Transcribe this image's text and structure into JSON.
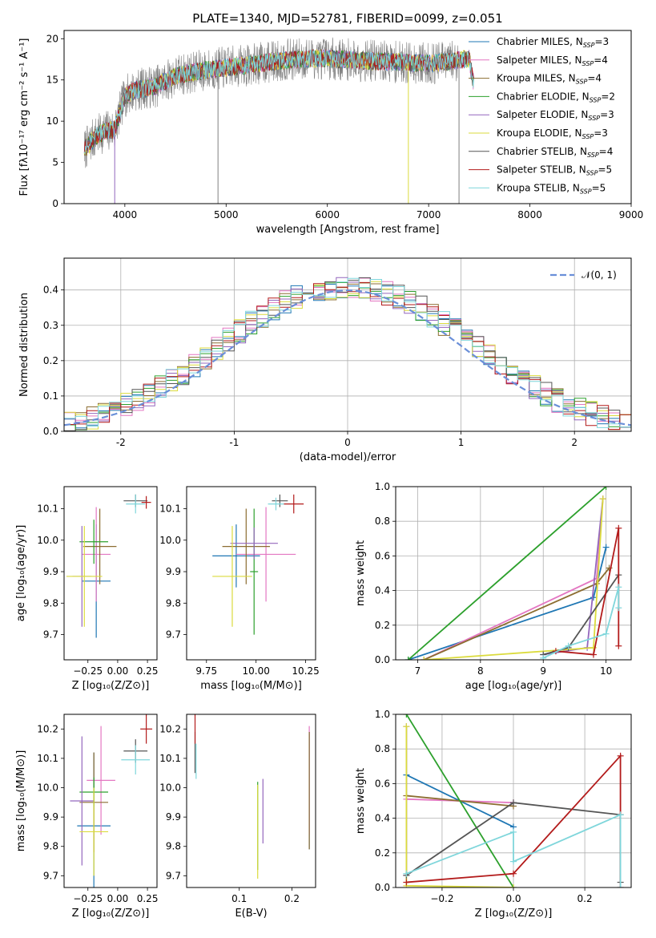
{
  "figure": {
    "title": "PLATE=1340, MJD=52781, FIBERID=0099, z=0.051"
  },
  "colors": {
    "Chabrier MILES": "#1f77b4",
    "Salpeter MILES": "#e377c2",
    "Kroupa MILES": "#8c6d31",
    "Chabrier ELODIE": "#2ca02c",
    "Salpeter ELODIE": "#9467bd",
    "Kroupa ELODIE": "#dbdb3d",
    "Chabrier STELIB": "#555555",
    "Salpeter STELIB": "#b31b1b",
    "Kroupa STELIB": "#7fd6db",
    "data": "#808080",
    "norm": "#6a8fd8"
  },
  "chart_data": [
    {
      "id": "spectrum",
      "type": "line",
      "xlabel": "wavelength [Angstrom, rest frame]",
      "ylabel": "Flux [fλ10⁻¹⁷ erg cm⁻² s⁻¹ A⁻¹]",
      "xlim": [
        3400,
        9000
      ],
      "ylim": [
        0,
        21
      ],
      "xticks": [
        "4000",
        "5000",
        "6000",
        "7000",
        "8000",
        "9000"
      ],
      "yticks": [
        "0",
        "5",
        "10",
        "15",
        "20"
      ],
      "legend_position": "upper-right",
      "legend": [
        {
          "name": "Chabrier MILES",
          "base": "Chabrier MILES, N",
          "sub": "SSP",
          "tail": "=3"
        },
        {
          "name": "Salpeter MILES",
          "base": "Salpeter MILES, N",
          "sub": "SSP",
          "tail": "=4"
        },
        {
          "name": "Kroupa MILES",
          "base": "Kroupa MILES, N",
          "sub": "SSP",
          "tail": "=4"
        },
        {
          "name": "Chabrier ELODIE",
          "base": "Chabrier ELODIE, N",
          "sub": "SSP",
          "tail": "=2"
        },
        {
          "name": "Salpeter ELODIE",
          "base": "Salpeter ELODIE, N",
          "sub": "SSP",
          "tail": "=3"
        },
        {
          "name": "Kroupa ELODIE",
          "base": "Kroupa ELODIE, N",
          "sub": "SSP",
          "tail": "=3"
        },
        {
          "name": "Chabrier STELIB",
          "base": "Chabrier STELIB, N",
          "sub": "SSP",
          "tail": "=4"
        },
        {
          "name": "Salpeter STELIB",
          "base": "Salpeter STELIB, N",
          "sub": "SSP",
          "tail": "=5"
        },
        {
          "name": "Kroupa STELIB",
          "base": "Kroupa STELIB, N",
          "sub": "SSP",
          "tail": "=5"
        }
      ],
      "continuum": [
        [
          3600,
          6.5
        ],
        [
          3700,
          8.0
        ],
        [
          3800,
          8.8
        ],
        [
          3900,
          9.0
        ],
        [
          4000,
          13.0
        ],
        [
          4100,
          13.8
        ],
        [
          4300,
          14.2
        ],
        [
          4500,
          15.5
        ],
        [
          4700,
          16.0
        ],
        [
          5000,
          16.5
        ],
        [
          5200,
          16.8
        ],
        [
          5500,
          17.3
        ],
        [
          5800,
          17.6
        ],
        [
          6000,
          17.6
        ],
        [
          6300,
          17.4
        ],
        [
          6600,
          17.2
        ],
        [
          7000,
          17.0
        ],
        [
          7200,
          17.2
        ],
        [
          7400,
          17.6
        ],
        [
          7450,
          14
        ],
        [
          7470,
          0
        ]
      ],
      "data_range": [
        3600,
        7300
      ],
      "models_range": [
        3600,
        7450
      ],
      "dips": [
        {
          "x": 3900,
          "to": 0,
          "series": "Salpeter ELODIE"
        },
        {
          "x": 4920,
          "to": 0,
          "series": "data"
        },
        {
          "x": 6800,
          "to": 0,
          "series": "Kroupa ELODIE"
        },
        {
          "x": 7300,
          "to": 0,
          "series": "data"
        }
      ]
    },
    {
      "id": "residuals",
      "type": "histogram",
      "xlabel": "(data-model)/error",
      "ylabel": "Normed distribution",
      "xlim": [
        -2.5,
        2.5
      ],
      "ylim": [
        0,
        0.49
      ],
      "xticks": [
        -2,
        -1,
        0,
        1,
        2
      ],
      "yticks": [
        0.0,
        0.1,
        0.2,
        0.3,
        0.4
      ],
      "grid": true,
      "bin_width": 0.1,
      "legend_position": "upper-right",
      "legend": [
        {
          "name": "N(0,1)",
          "label": "𝒩(0, 1)",
          "style": "dashed"
        }
      ],
      "curve": {
        "name": "N(0,1)",
        "type": "normal",
        "mean": 0,
        "std": 1
      }
    },
    {
      "id": "z-age",
      "type": "scatter",
      "xlabel": "Z [log₁₀(Z/Z⊙)]",
      "ylabel": "age  [log₁₀(age/yr)]",
      "xlim": [
        -0.45,
        0.33
      ],
      "ylim": [
        9.62,
        10.17
      ],
      "xticks": [
        -0.25,
        0.0,
        0.25
      ],
      "xtick_labels": [
        "−0.25",
        "0.00",
        "0.25"
      ],
      "yticks": [
        9.7,
        9.8,
        9.9,
        10.0,
        10.1
      ],
      "points": [
        {
          "series": "Chabrier MILES",
          "x": -0.18,
          "xerr": 0.12,
          "y": 9.87,
          "yerr": 0.18
        },
        {
          "series": "Salpeter MILES",
          "x": -0.18,
          "xerr": 0.12,
          "y": 9.955,
          "yerr": 0.15
        },
        {
          "series": "Kroupa MILES",
          "x": -0.15,
          "xerr": 0.14,
          "y": 9.98,
          "yerr": 0.12
        },
        {
          "series": "Chabrier ELODIE",
          "x": -0.2,
          "xerr": 0.12,
          "y": 9.995,
          "yerr": 0.07
        },
        {
          "series": "Salpeter ELODIE",
          "x": -0.3,
          "xerr": 0.08,
          "y": 9.885,
          "yerr": 0.16
        },
        {
          "series": "Kroupa ELODIE",
          "x": -0.28,
          "xerr": 0.15,
          "y": 9.885,
          "yerr": 0.16
        },
        {
          "series": "Chabrier STELIB",
          "x": 0.15,
          "xerr": 0.1,
          "y": 10.125,
          "yerr": 0.02
        },
        {
          "series": "Salpeter STELIB",
          "x": 0.24,
          "xerr": 0.04,
          "y": 10.12,
          "yerr": 0.02
        },
        {
          "series": "Kroupa STELIB",
          "x": 0.15,
          "xerr": 0.08,
          "y": 10.115,
          "yerr": 0.03
        }
      ]
    },
    {
      "id": "mass-age",
      "type": "scatter",
      "xlabel": "mass [log₁₀(M/M⊙)]",
      "ylabel": "",
      "xlim": [
        9.65,
        10.3
      ],
      "ylim": [
        9.62,
        10.17
      ],
      "xticks": [
        9.75,
        10.0,
        10.25
      ],
      "xtick_labels": [
        "9.75",
        "10.00",
        "10.25"
      ],
      "yticks": [
        9.7,
        9.8,
        9.9,
        10.0,
        10.1
      ],
      "points": [
        {
          "series": "Chabrier MILES",
          "x": 9.9,
          "xerr": 0.12,
          "y": 9.95,
          "yerr": 0.1
        },
        {
          "series": "Salpeter MILES",
          "x": 10.05,
          "xerr": 0.15,
          "y": 9.955,
          "yerr": 0.15
        },
        {
          "series": "Kroupa MILES",
          "x": 9.95,
          "xerr": 0.12,
          "y": 9.98,
          "yerr": 0.12
        },
        {
          "series": "Chabrier ELODIE",
          "x": 9.99,
          "xerr": 0.02,
          "y": 9.9,
          "yerr": 0.2
        },
        {
          "series": "Salpeter ELODIE",
          "x": 9.99,
          "xerr": 0.12,
          "y": 9.99,
          "yerr": 0.05
        },
        {
          "series": "Kroupa ELODIE",
          "x": 9.88,
          "xerr": 0.1,
          "y": 9.885,
          "yerr": 0.16
        },
        {
          "series": "Chabrier STELIB",
          "x": 10.12,
          "xerr": 0.04,
          "y": 10.125,
          "yerr": 0.02
        },
        {
          "series": "Salpeter STELIB",
          "x": 10.19,
          "xerr": 0.05,
          "y": 10.115,
          "yerr": 0.03
        },
        {
          "series": "Kroupa STELIB",
          "x": 10.1,
          "xerr": 0.04,
          "y": 10.115,
          "yerr": 0.02
        }
      ]
    },
    {
      "id": "age-weight",
      "type": "line",
      "xlabel": "age  [log₁₀(age/yr)]",
      "ylabel": "mass weight",
      "xlim": [
        6.65,
        10.4
      ],
      "ylim": [
        0,
        1
      ],
      "xticks": [
        7,
        8,
        9,
        10
      ],
      "yticks": [
        0.0,
        0.2,
        0.4,
        0.6,
        0.8,
        1.0
      ],
      "ytick_labels": [
        "0.0",
        "0.2",
        "0.4",
        "0.6",
        "0.8",
        "1.0"
      ],
      "grid": true,
      "series": [
        {
          "name": "Chabrier MILES",
          "points": [
            [
              6.85,
              0
            ],
            [
              9.8,
              0.36
            ],
            [
              10.0,
              0.65
            ]
          ]
        },
        {
          "name": "Salpeter MILES",
          "points": [
            [
              7.1,
              0
            ],
            [
              9.85,
              0.47
            ],
            [
              9.95,
              0.93
            ]
          ]
        },
        {
          "name": "Kroupa MILES",
          "points": [
            [
              7.1,
              0
            ],
            [
              9.85,
              0.44
            ],
            [
              10.05,
              0.53
            ]
          ]
        },
        {
          "name": "Chabrier ELODIE",
          "points": [
            [
              6.85,
              0
            ],
            [
              10.0,
              1.0
            ]
          ]
        },
        {
          "name": "Salpeter ELODIE",
          "points": [
            [
              9.0,
              0.03
            ],
            [
              9.7,
              0.07
            ],
            [
              9.95,
              0.93
            ]
          ]
        },
        {
          "name": "Kroupa ELODIE",
          "points": [
            [
              7.1,
              0
            ],
            [
              9.8,
              0.07
            ],
            [
              9.95,
              0.93
            ]
          ]
        },
        {
          "name": "Chabrier STELIB",
          "points": [
            [
              9.0,
              0.03
            ],
            [
              9.4,
              0.07
            ],
            [
              10.2,
              0.49
            ]
          ]
        },
        {
          "name": "Salpeter STELIB",
          "points": [
            [
              9.2,
              0.05
            ],
            [
              9.8,
              0.03
            ],
            [
              10.2,
              0.76
            ],
            [
              10.2,
              0.08
            ]
          ]
        },
        {
          "name": "Kroupa STELIB",
          "points": [
            [
              9.0,
              0.01
            ],
            [
              9.4,
              0.08
            ],
            [
              10.0,
              0.15
            ],
            [
              10.2,
              0.42
            ],
            [
              10.2,
              0.3
            ]
          ]
        }
      ]
    },
    {
      "id": "z-mass",
      "type": "scatter",
      "xlabel": "Z [log₁₀(Z/Z⊙)]",
      "ylabel": "mass [log₁₀(M/M⊙)]",
      "xlim": [
        -0.45,
        0.33
      ],
      "ylim": [
        9.66,
        10.25
      ],
      "xticks": [
        -0.25,
        0.0,
        0.25
      ],
      "xtick_labels": [
        "−0.25",
        "0.00",
        "0.25"
      ],
      "yticks": [
        9.7,
        9.8,
        9.9,
        10.0,
        10.1,
        10.2
      ],
      "points": [
        {
          "series": "Chabrier MILES",
          "x": -0.2,
          "xerr": 0.14,
          "y": 9.87,
          "yerr": 0.25
        },
        {
          "series": "Salpeter MILES",
          "x": -0.14,
          "xerr": 0.12,
          "y": 10.025,
          "yerr": 0.185
        },
        {
          "series": "Kroupa MILES",
          "x": -0.2,
          "xerr": 0.12,
          "y": 9.95,
          "yerr": 0.17
        },
        {
          "series": "Chabrier ELODIE",
          "x": -0.2,
          "xerr": 0.12,
          "y": 9.985,
          "yerr": 0.05
        },
        {
          "series": "Salpeter ELODIE",
          "x": -0.3,
          "xerr": 0.1,
          "y": 9.955,
          "yerr": 0.22
        },
        {
          "series": "Kroupa ELODIE",
          "x": -0.2,
          "xerr": 0.12,
          "y": 9.85,
          "yerr": 0.15
        },
        {
          "series": "Chabrier STELIB",
          "x": 0.15,
          "xerr": 0.1,
          "y": 10.125,
          "yerr": 0.04
        },
        {
          "series": "Salpeter STELIB",
          "x": 0.24,
          "xerr": 0.05,
          "y": 10.2,
          "yerr": 0.05
        },
        {
          "series": "Kroupa STELIB",
          "x": 0.15,
          "xerr": 0.12,
          "y": 10.095,
          "yerr": 0.05
        }
      ]
    },
    {
      "id": "ebv-mass",
      "type": "scatter",
      "xlabel": "E(B-V)",
      "ylabel": "",
      "xlim": [
        0.0,
        0.245
      ],
      "ylim": [
        9.66,
        10.25
      ],
      "xticks": [
        0.1,
        0.2
      ],
      "xtick_labels": [
        "0.1",
        "0.2"
      ],
      "yticks": [
        9.7,
        9.8,
        9.9,
        10.0,
        10.1,
        10.2
      ],
      "points": [
        {
          "series": "Chabrier MILES",
          "x": 0.233,
          "xerr": 0,
          "y": 9.99,
          "yerr": 0.2
        },
        {
          "series": "Salpeter MILES",
          "x": 0.233,
          "xerr": 0,
          "y": 10.025,
          "yerr": 0.185
        },
        {
          "series": "Kroupa MILES",
          "x": 0.233,
          "xerr": 0,
          "y": 9.99,
          "yerr": 0.2
        },
        {
          "series": "Chabrier ELODIE",
          "x": 0.135,
          "xerr": 0,
          "y": 9.87,
          "yerr": 0.15
        },
        {
          "series": "Salpeter ELODIE",
          "x": 0.145,
          "xerr": 0,
          "y": 9.92,
          "yerr": 0.11
        },
        {
          "series": "Kroupa ELODIE",
          "x": 0.135,
          "xerr": 0,
          "y": 9.85,
          "yerr": 0.16
        },
        {
          "series": "Chabrier STELIB",
          "x": 0.016,
          "xerr": 0,
          "y": 10.12,
          "yerr": 0.07
        },
        {
          "series": "Salpeter STELIB",
          "x": 0.016,
          "xerr": 0,
          "y": 10.2,
          "yerr": 0.05
        },
        {
          "series": "Kroupa STELIB",
          "x": 0.018,
          "xerr": 0,
          "y": 10.09,
          "yerr": 0.06
        }
      ]
    },
    {
      "id": "z-weight",
      "type": "line",
      "xlabel": "Z [log₁₀(Z/Z⊙)]",
      "ylabel": "mass weight",
      "xlim": [
        -0.33,
        0.33
      ],
      "ylim": [
        0,
        1
      ],
      "xticks": [
        -0.2,
        0.0,
        0.2
      ],
      "xtick_labels": [
        "−0.2",
        "0.0",
        "0.2"
      ],
      "yticks": [
        0.0,
        0.2,
        0.4,
        0.6,
        0.8,
        1.0
      ],
      "ytick_labels": [
        "0.0",
        "0.2",
        "0.4",
        "0.6",
        "0.8",
        "1.0"
      ],
      "grid": true,
      "series": [
        {
          "name": "Chabrier MILES",
          "points": [
            [
              -0.3,
              0.65
            ],
            [
              0.0,
              0.35
            ]
          ]
        },
        {
          "name": "Salpeter MILES",
          "points": [
            [
              -0.3,
              0.51
            ],
            [
              0.0,
              0.49
            ]
          ]
        },
        {
          "name": "Kroupa MILES",
          "points": [
            [
              -0.3,
              0.53
            ],
            [
              0.0,
              0.47
            ]
          ]
        },
        {
          "name": "Chabrier ELODIE",
          "points": [
            [
              -0.3,
              1.0
            ],
            [
              0.0,
              0.0
            ]
          ]
        },
        {
          "name": "Salpeter ELODIE",
          "points": [
            [
              -0.3,
              0.93
            ],
            [
              -0.3,
              0.07
            ]
          ]
        },
        {
          "name": "Kroupa ELODIE",
          "points": [
            [
              -0.3,
              0.93
            ],
            [
              -0.3,
              0.01
            ],
            [
              0.0,
              0.0
            ]
          ]
        },
        {
          "name": "Chabrier STELIB",
          "points": [
            [
              -0.3,
              0.07
            ],
            [
              0.0,
              0.49
            ],
            [
              0.3,
              0.42
            ],
            [
              0.3,
              0.03
            ]
          ]
        },
        {
          "name": "Salpeter STELIB",
          "points": [
            [
              -0.3,
              0.03
            ],
            [
              0.0,
              0.08
            ],
            [
              0.3,
              0.76
            ],
            [
              0.3,
              0.0
            ]
          ]
        },
        {
          "name": "Kroupa STELIB",
          "points": [
            [
              -0.3,
              0.08
            ],
            [
              0.0,
              0.32
            ],
            [
              0.0,
              0.15
            ],
            [
              0.3,
              0.42
            ],
            [
              0.3,
              0.0
            ]
          ]
        }
      ]
    }
  ]
}
